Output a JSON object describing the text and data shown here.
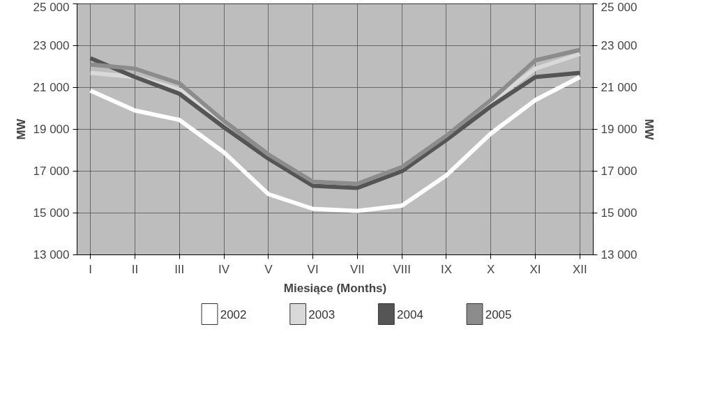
{
  "chart_data": {
    "type": "line",
    "xlabel": "Miesiące (Months)",
    "ylabel": "MW",
    "y2label": "MW",
    "categories": [
      "I",
      "II",
      "III",
      "IV",
      "V",
      "VI",
      "VII",
      "VIII",
      "IX",
      "X",
      "XI",
      "XII"
    ],
    "ylim": [
      13000,
      25000
    ],
    "yticks": [
      {
        "value": 13000,
        "label": "13 000"
      },
      {
        "value": 15000,
        "label": "15 000"
      },
      {
        "value": 17000,
        "label": "17 000"
      },
      {
        "value": 19000,
        "label": "19 000"
      },
      {
        "value": 21000,
        "label": "21 000"
      },
      {
        "value": 23000,
        "label": "23 000"
      },
      {
        "value": 25000,
        "label": "25 000"
      }
    ],
    "y2lim": [
      13000,
      25000
    ],
    "y2ticks": [
      {
        "value": 13000,
        "label": "13 000"
      },
      {
        "value": 15000,
        "label": "15 000"
      },
      {
        "value": 17000,
        "label": "17 000"
      },
      {
        "value": 19000,
        "label": "19 000"
      },
      {
        "value": 21000,
        "label": "21 000"
      },
      {
        "value": 23000,
        "label": "23 000"
      },
      {
        "value": 25000,
        "label": "25 000"
      }
    ],
    "grid": true,
    "legend": "bottom",
    "marker": "none",
    "line_style": "solid",
    "series": [
      {
        "name": "2002",
        "color": "#ffffff",
        "values": [
          20850,
          19900,
          19450,
          17900,
          15900,
          15200,
          15100,
          15350,
          16800,
          18800,
          20400,
          21500
        ]
      },
      {
        "name": "2003",
        "color": "#d9d9d9",
        "values": [
          21700,
          21500,
          20900,
          19300,
          17800,
          16500,
          16400,
          17200,
          18700,
          20300,
          21900,
          22600
        ]
      },
      {
        "name": "2004",
        "color": "#555555",
        "values": [
          22400,
          21500,
          20700,
          19100,
          17600,
          16300,
          16200,
          17000,
          18500,
          20100,
          21500,
          21700
        ]
      },
      {
        "name": "2005",
        "color": "#8c8c8c",
        "values": [
          22100,
          21900,
          21200,
          19400,
          17800,
          16500,
          16400,
          17200,
          18700,
          20400,
          22300,
          22800
        ]
      }
    ]
  }
}
